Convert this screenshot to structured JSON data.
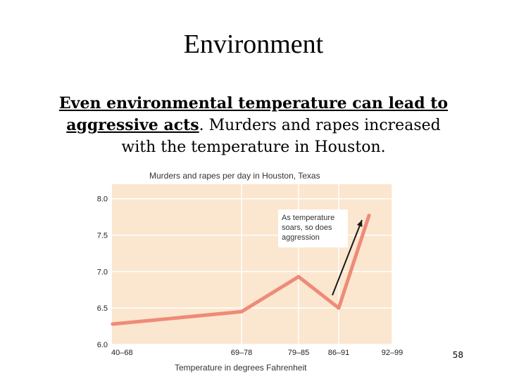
{
  "slide": {
    "title": "Environment",
    "text_emphasis_line1": "Even environmental temperature can lead to",
    "text_emphasis_line2": "aggressive acts",
    "text_rest_line2": ". Murders and rapes increased",
    "text_line3": "with the temperature in Houston.",
    "page_number": "58"
  },
  "colors": {
    "plot_background": "#fbe6cf",
    "line": "#ee8b78",
    "grid": "#ffffff",
    "arrow": "#1a1a1a",
    "annotation_box": "#ffffff"
  },
  "chart_data": {
    "type": "line",
    "title": "Murders and rapes per day in Houston, Texas",
    "xlabel": "Temperature in degrees Fahrenheit",
    "ylabel": "",
    "categories": [
      "40–68",
      "69–78",
      "79–85",
      "86–91",
      "92–99"
    ],
    "series": [
      {
        "values": [
          6.28,
          6.45,
          6.93,
          6.5,
          7.77
        ]
      }
    ],
    "ylim": [
      6.0,
      8.2
    ],
    "yticks": [
      "6.0",
      "6.5",
      "7.0",
      "7.5",
      "8.0"
    ],
    "grid": true,
    "annotation": {
      "text_lines": [
        "As temperature",
        "soars, so does",
        "aggression"
      ]
    }
  }
}
